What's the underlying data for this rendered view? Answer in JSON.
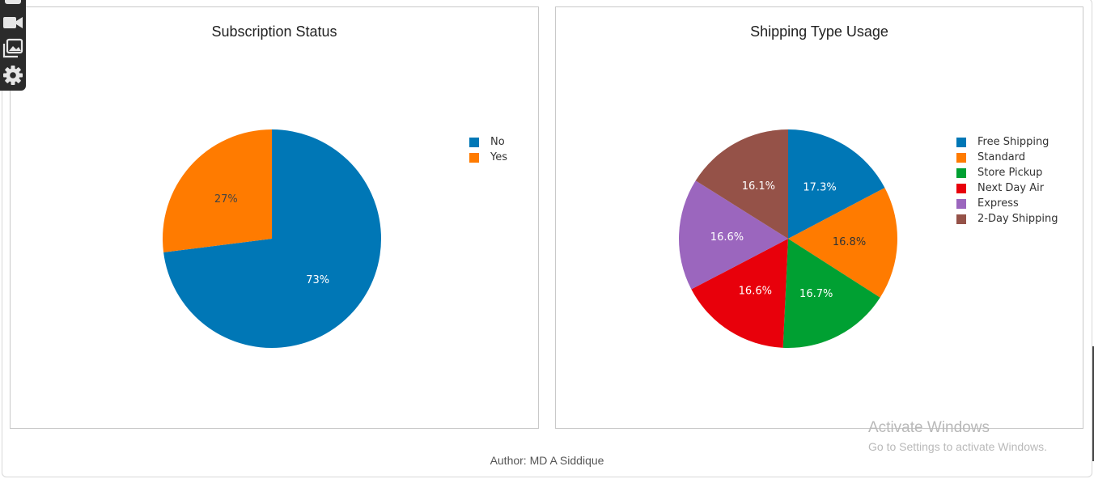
{
  "toolbar": {
    "icons": [
      "square-icon",
      "camera-icon",
      "images-icon",
      "gear-icon"
    ]
  },
  "chart_data": [
    {
      "type": "pie",
      "title": "Subscription Status",
      "labels": [
        "No",
        "Yes"
      ],
      "values": [
        73,
        27
      ],
      "value_labels": [
        "73%",
        "27%"
      ],
      "colors": [
        "#0077b6",
        "#ff7b00"
      ],
      "legend_position": "right"
    },
    {
      "type": "pie",
      "title": "Shipping Type Usage",
      "labels": [
        "Free Shipping",
        "Standard",
        "Store Pickup",
        "Next Day Air",
        "Express",
        "2-Day Shipping"
      ],
      "values": [
        17.3,
        16.8,
        16.7,
        16.6,
        16.6,
        16.1
      ],
      "value_labels": [
        "17.3%",
        "16.8%",
        "16.7%",
        "16.6%",
        "16.6%",
        "16.1%"
      ],
      "colors": [
        "#0077b6",
        "#ff7b00",
        "#00a032",
        "#e8000b",
        "#9b66be",
        "#955248"
      ],
      "legend_position": "right"
    }
  ],
  "footer": {
    "author": "Author: MD A Siddique"
  },
  "watermark": {
    "title": "Activate Windows",
    "subtitle": "Go to Settings to activate Windows."
  }
}
